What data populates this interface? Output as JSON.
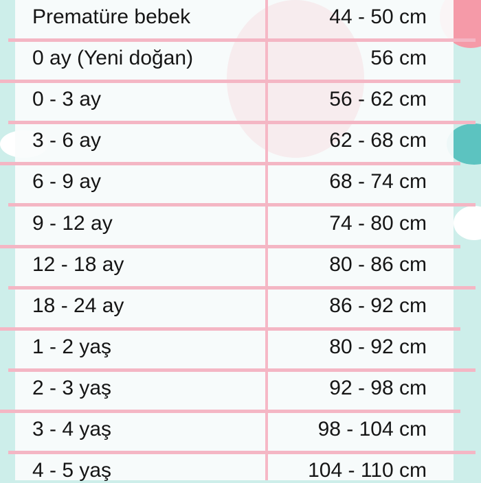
{
  "table": {
    "rows": [
      {
        "age": "Prematüre bebek",
        "height": "44 - 50 cm"
      },
      {
        "age": "0 ay (Yeni doğan)",
        "height": "56 cm"
      },
      {
        "age": "0 - 3 ay",
        "height": "56 - 62 cm"
      },
      {
        "age": "3 - 6 ay",
        "height": "62 - 68 cm"
      },
      {
        "age": "6 - 9 ay",
        "height": "68 - 74 cm"
      },
      {
        "age": "9 - 12 ay",
        "height": "74 - 80 cm"
      },
      {
        "age": "12 - 18 ay",
        "height": "80 - 86 cm"
      },
      {
        "age": "18 - 24 ay",
        "height": "86 - 92 cm"
      },
      {
        "age": "1 - 2 yaş",
        "height": "80 - 92 cm"
      },
      {
        "age": "2 - 3 yaş",
        "height": "92 - 98 cm"
      },
      {
        "age": "3 - 4 yaş",
        "height": "98 - 104 cm"
      },
      {
        "age": "4 - 5 yaş",
        "height": "104 - 110 cm"
      }
    ]
  },
  "colors": {
    "background": "#cdeeea",
    "divider": "#f4b6c4",
    "accent_pink": "#f59aa8",
    "accent_teal": "#5cc3c0"
  }
}
